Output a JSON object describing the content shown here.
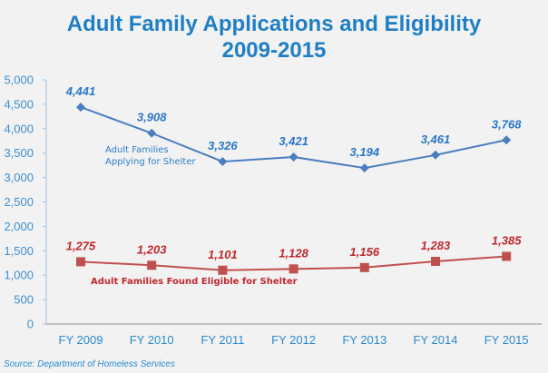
{
  "chart_data": {
    "type": "line",
    "title": "Adult Family Applications and Eligibility",
    "subtitle": "2009-2015",
    "xlabel": "",
    "ylabel": "",
    "categories": [
      "FY 2009",
      "FY 2010",
      "FY 2011",
      "FY 2012",
      "FY 2013",
      "FY 2014",
      "FY 2015"
    ],
    "ylim": [
      0,
      5000
    ],
    "yticks": [
      0,
      500,
      1000,
      1500,
      2000,
      2500,
      3000,
      3500,
      4000,
      4500,
      5000
    ],
    "ytick_labels": [
      "0",
      "500",
      "1,000",
      "1,500",
      "2,000",
      "2,500",
      "3,000",
      "3,500",
      "4,000",
      "4,500",
      "5,000"
    ],
    "grid": false,
    "series": [
      {
        "name": "Adult Families Applying for Shelter",
        "annotation_lines": [
          "Adult Families",
          "Applying for Shelter"
        ],
        "color": "#4a7ebf",
        "label_color": "#2a77c6",
        "marker": "diamond",
        "values": [
          4441,
          3908,
          3326,
          3421,
          3194,
          3461,
          3768
        ],
        "labels": [
          "4,441",
          "3,908",
          "3,326",
          "3,421",
          "3,194",
          "3,461",
          "3,768"
        ]
      },
      {
        "name": "Adult Families Found Eligible for Shelter",
        "annotation_lines": [
          "Adult Families Found Eligible for Shelter"
        ],
        "color": "#c0504d",
        "label_color": "#c0272d",
        "marker": "square",
        "values": [
          1275,
          1203,
          1101,
          1128,
          1156,
          1283,
          1385
        ],
        "labels": [
          "1,275",
          "1,203",
          "1,101",
          "1,128",
          "1,156",
          "1,283",
          "1,385"
        ]
      }
    ]
  },
  "title_line1": "Adult Family Applications and Eligibility",
  "title_line2": "2009-2015",
  "source": "Source:  Department of Homeless Services"
}
